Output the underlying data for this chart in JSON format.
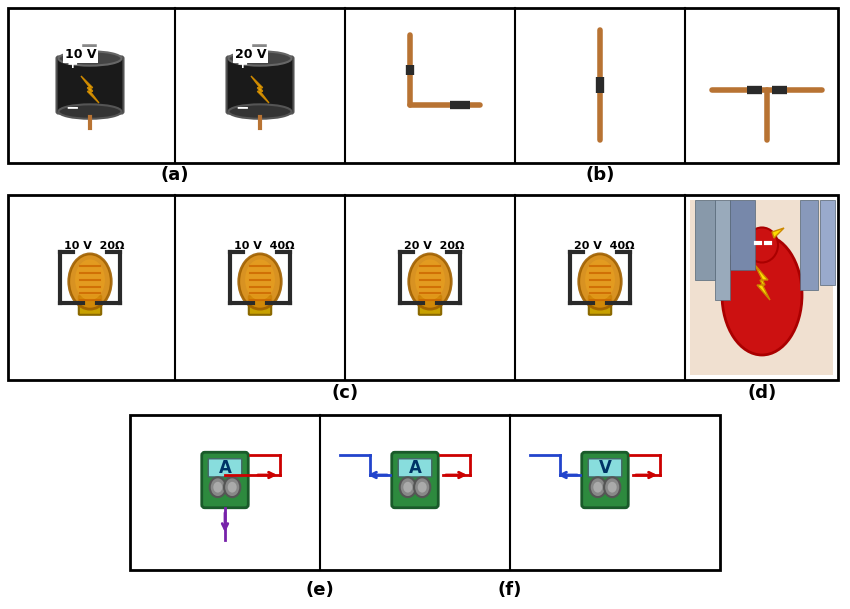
{
  "bg_color": "#ffffff",
  "border_color": "#000000",
  "label_a": "(a)",
  "label_b": "(b)",
  "label_c": "(c)",
  "label_d": "(d)",
  "label_e": "(e)",
  "label_f": "(f)",
  "battery1_label": "10 V",
  "battery2_label": "20 V",
  "bulb_labels": [
    "10 V  20Ω",
    "10 V  40Ω",
    "20 V  20Ω",
    "20 V  40Ω"
  ],
  "wire_copper": "#b87333",
  "wire_dark": "#2a2a2a",
  "battery_body": "#1a1a1a",
  "battery_top": "#333333",
  "lightning_yellow": "#f5c518",
  "bulb_amber": "#d4860a",
  "green_meter": "#2d8a3e",
  "arrow_red": "#cc0000",
  "arrow_blue": "#2244cc",
  "arrow_purple": "#7722aa"
}
